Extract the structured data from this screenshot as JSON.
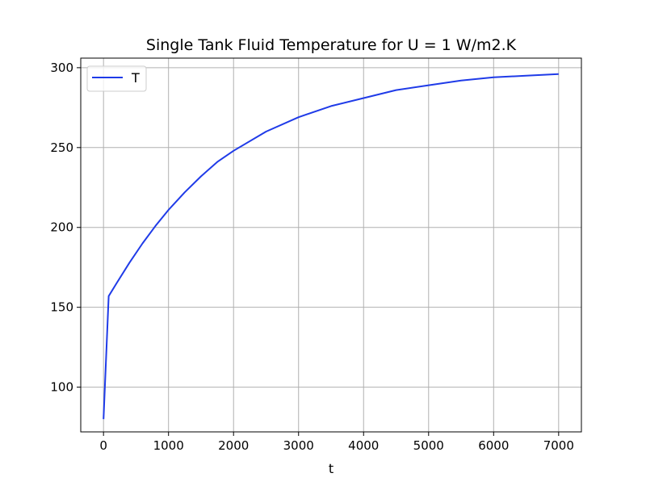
{
  "chart_data": {
    "type": "line",
    "title": "Single Tank Fluid Temperature for U = 1 W/m2.K",
    "xlabel": "t",
    "ylabel": "",
    "xlim": [
      -350,
      7350
    ],
    "ylim": [
      72,
      306
    ],
    "xticks": [
      0,
      1000,
      2000,
      3000,
      4000,
      5000,
      6000,
      7000
    ],
    "yticks": [
      100,
      150,
      200,
      250,
      300
    ],
    "grid": true,
    "legend_position": "top-left",
    "series": [
      {
        "name": "T",
        "color": "#1f3be8",
        "x": [
          0,
          80,
          200,
          400,
          600,
          800,
          1000,
          1250,
          1500,
          1750,
          2000,
          2500,
          3000,
          3500,
          4000,
          4500,
          5000,
          5500,
          6000,
          6500,
          7000
        ],
        "y": [
          80,
          157,
          165,
          178,
          190,
          201,
          211,
          222,
          232,
          241,
          248,
          260,
          269,
          276,
          281,
          286,
          289,
          292,
          294,
          295,
          296
        ]
      }
    ]
  }
}
